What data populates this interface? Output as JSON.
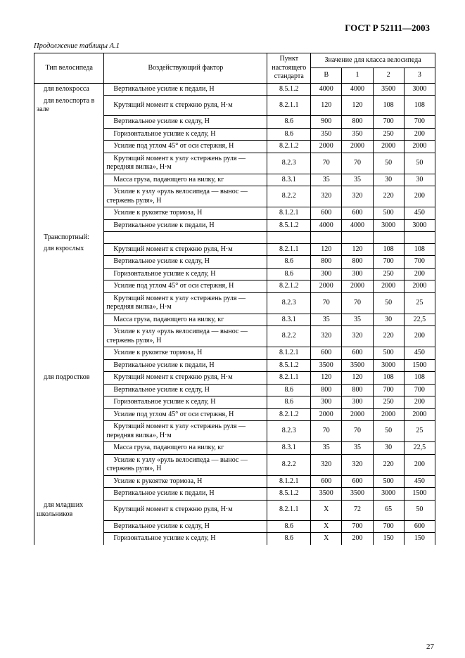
{
  "doc_id": "ГОСТ Р 52111—2003",
  "continuation": "Продолжение таблицы А.1",
  "page_number": "27",
  "columns": {
    "type": "Тип велосипеда",
    "factor": "Воздействующий фактор",
    "punkt": "Пункт настоящего стандарта",
    "values_group": "Значение для класса велосипеда",
    "vals": [
      "В",
      "1",
      "2",
      "3"
    ]
  },
  "type_labels": {
    "velocross": "для велокросса",
    "velosport": "для  велоспорта в зале",
    "transport": "Транспортный:",
    "adults": "для взрослых",
    "teens": "для подростков",
    "juniors": "для    младших школьников"
  },
  "rows": [
    {
      "k": "velocross",
      "f": "Вертикальное усилие к педали, Н",
      "p": "8.5.1.2",
      "v": [
        "4000",
        "4000",
        "3500",
        "3000"
      ]
    },
    {
      "k": "velosport",
      "f": "Крутящий момент к стержню руля, Н·м",
      "p": "8.2.1.1",
      "v": [
        "120",
        "120",
        "108",
        "108"
      ]
    },
    {
      "k": "",
      "f": "Вертикальное усилие к седлу, Н",
      "p": "8.6",
      "v": [
        "900",
        "800",
        "700",
        "700"
      ]
    },
    {
      "k": "",
      "f": "Горизонтальное усилие к седлу, Н",
      "p": "8.6",
      "v": [
        "350",
        "350",
        "250",
        "200"
      ]
    },
    {
      "k": "",
      "f": "Усилие под углом 45° от оси стержня, Н",
      "p": "8.2.1.2",
      "v": [
        "2000",
        "2000",
        "2000",
        "2000"
      ]
    },
    {
      "k": "",
      "f": "Крутящий момент к узлу «стержень руля — передняя вилка», Н·м",
      "p": "8.2.3",
      "v": [
        "70",
        "70",
        "50",
        "50"
      ]
    },
    {
      "k": "",
      "f": "Масса груза, падающего на вилку, кг",
      "p": "8.3.1",
      "v": [
        "35",
        "35",
        "30",
        "30"
      ]
    },
    {
      "k": "",
      "f": "Усилие к узлу «руль велосипеда — вынос — стержень руля», Н",
      "p": "8.2.2",
      "v": [
        "320",
        "320",
        "220",
        "200"
      ]
    },
    {
      "k": "",
      "f": "Усилие к рукоятке тормоза, Н",
      "p": "8.1.2.1",
      "v": [
        "600",
        "600",
        "500",
        "450"
      ]
    },
    {
      "k": "",
      "f": "Вертикальное усилие к педали, Н",
      "p": "8.5.1.2",
      "v": [
        "4000",
        "4000",
        "3000",
        "3000"
      ]
    },
    {
      "k": "transport",
      "f": "",
      "p": "",
      "v": [
        "",
        "",
        "",
        ""
      ]
    },
    {
      "k": "adults",
      "f": "Крутящий момент к стержню руля, Н·м",
      "p": "8.2.1.1",
      "v": [
        "120",
        "120",
        "108",
        "108"
      ]
    },
    {
      "k": "",
      "f": "Вертикальное усилие к седлу, Н",
      "p": "8.6",
      "v": [
        "800",
        "800",
        "700",
        "700"
      ]
    },
    {
      "k": "",
      "f": "Горизонтальное усилие к седлу, Н",
      "p": "8.6",
      "v": [
        "300",
        "300",
        "250",
        "200"
      ]
    },
    {
      "k": "",
      "f": "Усилие под углом 45° от оси стержня, Н",
      "p": "8.2.1.2",
      "v": [
        "2000",
        "2000",
        "2000",
        "2000"
      ]
    },
    {
      "k": "",
      "f": "Крутящий момент к узлу «стержень руля — передняя вилка», Н·м",
      "p": "8.2.3",
      "v": [
        "70",
        "70",
        "50",
        "25"
      ]
    },
    {
      "k": "",
      "f": "Масса груза, падающего на вилку, кг",
      "p": "8.3.1",
      "v": [
        "35",
        "35",
        "30",
        "22,5"
      ]
    },
    {
      "k": "",
      "f": "Усилие к узлу «руль велосипеда — вынос — стержень руля», Н",
      "p": "8.2.2",
      "v": [
        "320",
        "320",
        "220",
        "200"
      ]
    },
    {
      "k": "",
      "f": "Усилие к рукоятке тормоза, Н",
      "p": "8.1.2.1",
      "v": [
        "600",
        "600",
        "500",
        "450"
      ]
    },
    {
      "k": "",
      "f": "Вертикальное усилие к педали, Н",
      "p": "8.5.1.2",
      "v": [
        "3500",
        "3500",
        "3000",
        "1500"
      ]
    },
    {
      "k": "teens",
      "f": "Крутящий момент к стержню руля, Н·м",
      "p": "8.2.1.1",
      "v": [
        "120",
        "120",
        "108",
        "108"
      ]
    },
    {
      "k": "",
      "f": "Вертикальное усилие к седлу, Н",
      "p": "8.6",
      "v": [
        "800",
        "800",
        "700",
        "700"
      ]
    },
    {
      "k": "",
      "f": "Горизонтальное усилие к седлу, Н",
      "p": "8.6",
      "v": [
        "300",
        "300",
        "250",
        "200"
      ]
    },
    {
      "k": "",
      "f": "Усилие под углом 45° от оси стержня, Н",
      "p": "8.2.1.2",
      "v": [
        "2000",
        "2000",
        "2000",
        "2000"
      ]
    },
    {
      "k": "",
      "f": "Крутящий момент к узлу «стержень руля — передняя вилка», Н·м",
      "p": "8.2.3",
      "v": [
        "70",
        "70",
        "50",
        "25"
      ]
    },
    {
      "k": "",
      "f": "Масса груза, падающего на вилку, кг",
      "p": "8.3.1",
      "v": [
        "35",
        "35",
        "30",
        "22,5"
      ]
    },
    {
      "k": "",
      "f": "Усилие к узлу «руль велосипеда — вынос — стержень руля», Н",
      "p": "8.2.2",
      "v": [
        "320",
        "320",
        "220",
        "200"
      ]
    },
    {
      "k": "",
      "f": "Усилие к рукоятке тормоза, Н",
      "p": "8.1.2.1",
      "v": [
        "600",
        "600",
        "500",
        "450"
      ]
    },
    {
      "k": "",
      "f": "Вертикальное усилие к педали, Н",
      "p": "8.5.1.2",
      "v": [
        "3500",
        "3500",
        "3000",
        "1500"
      ]
    },
    {
      "k": "juniors",
      "f": "Крутящий момент к стержню руля, Н·м",
      "p": "8.2.1.1",
      "v": [
        "X",
        "72",
        "65",
        "50"
      ]
    },
    {
      "k": "",
      "f": "Вертикальное усилие к седлу, Н",
      "p": "8.6",
      "v": [
        "X",
        "700",
        "700",
        "600"
      ]
    },
    {
      "k": "",
      "f": "Горизонтальное усилие к седлу, Н",
      "p": "8.6",
      "v": [
        "X",
        "200",
        "150",
        "150"
      ]
    }
  ]
}
